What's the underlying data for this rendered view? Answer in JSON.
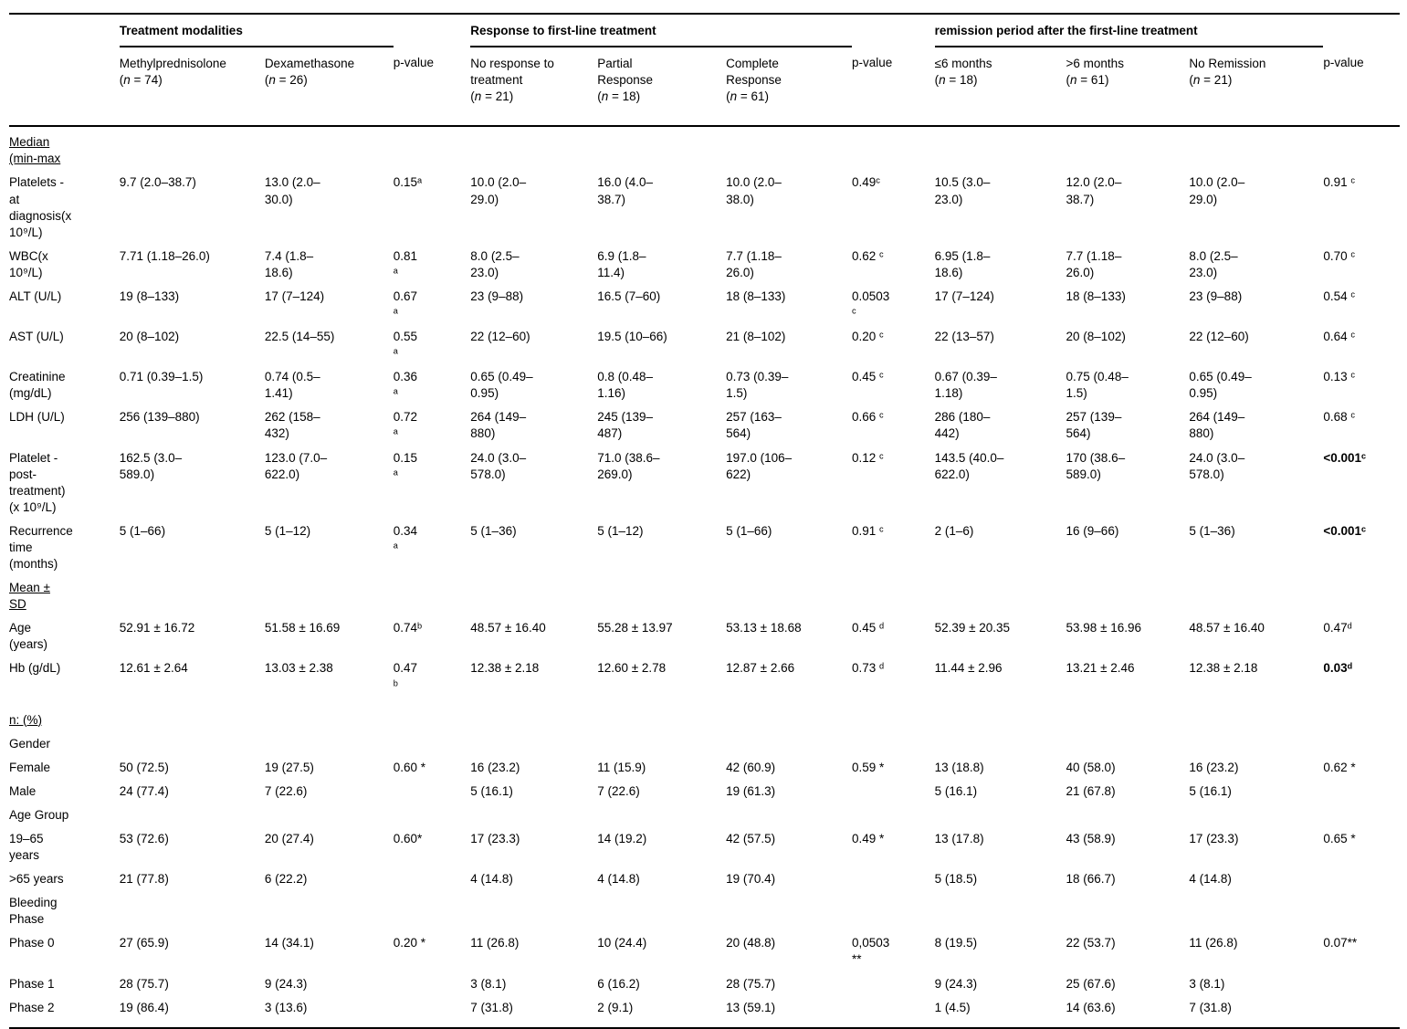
{
  "table": {
    "groups": [
      {
        "label": "",
        "span": 1,
        "rule": false
      },
      {
        "label": "Treatment modalities",
        "span": 2,
        "rule": true
      },
      {
        "label": "",
        "span": 1,
        "rule": false
      },
      {
        "label": "Response to first-line treatment",
        "span": 3,
        "rule": true
      },
      {
        "label": "",
        "span": 1,
        "rule": false
      },
      {
        "label": "remission period after the first-line treatment",
        "span": 3,
        "rule": true
      },
      {
        "label": "",
        "span": 1,
        "rule": false
      }
    ],
    "columns": [
      {
        "label": "Methylprednisolone",
        "n": "74"
      },
      {
        "label": "Dexamethasone",
        "n": "26"
      },
      {
        "label": "p-value"
      },
      {
        "label": "No response to\ntreatment",
        "n": "21"
      },
      {
        "label": "Partial\nResponse",
        "n": "18"
      },
      {
        "label": "Complete\nResponse",
        "n": "61"
      },
      {
        "label": "p-value"
      },
      {
        "label": "≤6 months",
        "n": "18"
      },
      {
        "label": ">6 months",
        "n": "61"
      },
      {
        "label": "No Remission",
        "n": "21"
      },
      {
        "label": "p-value"
      }
    ],
    "rows": [
      {
        "type": "section",
        "label": "Median\n(min-max",
        "cells": [
          "",
          "",
          "",
          "",
          "",
          "",
          "",
          "",
          "",
          "",
          ""
        ]
      },
      {
        "type": "data",
        "label": "Platelets -\nat\ndiagnosis(x\n10⁹/L)",
        "cells": [
          "9.7 (2.0–38.7)",
          "13.0 (2.0–\n30.0)",
          "0.15ᵃ",
          "10.0 (2.0–\n29.0)",
          "16.0 (4.0–\n38.7)",
          "10.0 (2.0–\n38.0)",
          "0.49ᶜ",
          "10.5 (3.0–\n23.0)",
          "12.0 (2.0–\n38.7)",
          "10.0 (2.0–\n29.0)",
          "0.91 ᶜ"
        ]
      },
      {
        "type": "data",
        "label": "WBC(x\n10⁹/L)",
        "cells": [
          "7.71 (1.18–26.0)",
          "7.4 (1.8–\n18.6)",
          "0.81\nᵃ",
          "8.0 (2.5–\n23.0)",
          "6.9 (1.8–\n11.4)",
          "7.7 (1.18–\n26.0)",
          "0.62 ᶜ",
          "6.95 (1.8–\n18.6)",
          "7.7 (1.18–\n26.0)",
          "8.0 (2.5–\n23.0)",
          "0.70 ᶜ"
        ]
      },
      {
        "type": "data",
        "label": "ALT (U/L)",
        "cells": [
          "19 (8–133)",
          "17 (7–124)",
          "0.67\nᵃ",
          "23 (9–88)",
          "16.5 (7–60)",
          "18 (8–133)",
          "0.0503\nᶜ",
          "17 (7–124)",
          "18 (8–133)",
          "23 (9–88)",
          "0.54 ᶜ"
        ]
      },
      {
        "type": "data",
        "label": "AST (U/L)",
        "cells": [
          "20 (8–102)",
          "22.5 (14–55)",
          "0.55\nᵃ",
          "22 (12–60)",
          "19.5 (10–66)",
          "21 (8–102)",
          "0.20 ᶜ",
          "22 (13–57)",
          "20 (8–102)",
          "22 (12–60)",
          "0.64 ᶜ"
        ]
      },
      {
        "type": "data",
        "label": "Creatinine\n(mg/dL)",
        "cells": [
          "0.71 (0.39–1.5)",
          "0.74 (0.5–\n1.41)",
          "0.36\nᵃ",
          "0.65 (0.49–\n0.95)",
          "0.8 (0.48–\n1.16)",
          "0.73 (0.39–\n1.5)",
          "0.45 ᶜ",
          "0.67 (0.39–\n1.18)",
          "0.75 (0.48–\n1.5)",
          "0.65 (0.49–\n0.95)",
          "0.13 ᶜ"
        ]
      },
      {
        "type": "data",
        "label": "LDH (U/L)",
        "cells": [
          "256 (139–880)",
          "262 (158–\n432)",
          "0.72\nᵃ",
          "264 (149–\n880)",
          "245 (139–\n487)",
          "257 (163–\n564)",
          "0.66 ᶜ",
          "286 (180–\n442)",
          "257 (139–\n564)",
          "264 (149–\n880)",
          "0.68 ᶜ"
        ]
      },
      {
        "type": "data",
        "label": "Platelet -\npost-\ntreatment)\n(x 10⁹/L)",
        "cells": [
          "162.5 (3.0–\n589.0)",
          "123.0 (7.0–\n622.0)",
          "0.15\nᵃ",
          "24.0 (3.0–\n578.0)",
          "71.0 (38.6–\n269.0)",
          "197.0 (106–\n622)",
          "0.12 ᶜ",
          "143.5 (40.0–\n622.0)",
          "170 (38.6–\n589.0)",
          "24.0 (3.0–\n578.0)",
          "<0.001ᶜ"
        ],
        "bold": [
          10
        ]
      },
      {
        "type": "data",
        "label": "Recurrence\ntime\n(months)",
        "cells": [
          "5 (1–66)",
          "5 (1–12)",
          "0.34\nᵃ",
          "5 (1–36)",
          "5 (1–12)",
          "5 (1–66)",
          "0.91 ᶜ",
          "2 (1–6)",
          "16 (9–66)",
          "5 (1–36)",
          "<0.001ᶜ"
        ],
        "bold": [
          10
        ]
      },
      {
        "type": "section",
        "label": "Mean ±\nSD",
        "cells": [
          "",
          "",
          "",
          "",
          "",
          "",
          "",
          "",
          "",
          "",
          ""
        ]
      },
      {
        "type": "data",
        "label": "Age\n(years)",
        "cells": [
          "52.91 ± 16.72",
          "51.58 ± 16.69",
          "0.74ᵇ",
          "48.57 ± 16.40",
          "55.28 ± 13.97",
          "53.13 ± 18.68",
          "0.45 ᵈ",
          "52.39 ± 20.35",
          "53.98 ± 16.96",
          "48.57 ± 16.40",
          "0.47ᵈ"
        ]
      },
      {
        "type": "data",
        "label": "Hb (g/dL)",
        "cells": [
          "12.61 ± 2.64",
          "13.03 ± 2.38",
          "0.47\nᵇ",
          "12.38 ± 2.18",
          "12.60 ± 2.78",
          "12.87 ± 2.66",
          "0.73 ᵈ",
          "11.44 ± 2.96",
          "13.21 ± 2.46",
          "12.38 ± 2.18",
          "0.03ᵈ"
        ],
        "bold": [
          10
        ]
      },
      {
        "type": "section",
        "label": "n: (%)",
        "gap": true,
        "cells": [
          "",
          "",
          "",
          "",
          "",
          "",
          "",
          "",
          "",
          "",
          ""
        ]
      },
      {
        "type": "subheader",
        "label": "Gender",
        "cells": [
          "",
          "",
          "",
          "",
          "",
          "",
          "",
          "",
          "",
          "",
          ""
        ]
      },
      {
        "type": "data",
        "label": "Female",
        "cells": [
          "50 (72.5)",
          "19 (27.5)",
          "0.60 *",
          "16 (23.2)",
          "11 (15.9)",
          "42 (60.9)",
          "0.59 *",
          "13 (18.8)",
          "40 (58.0)",
          "16 (23.2)",
          "0.62 *"
        ]
      },
      {
        "type": "data",
        "label": "Male",
        "cells": [
          "24 (77.4)",
          "7 (22.6)",
          "",
          "5 (16.1)",
          "7 (22.6)",
          "19 (61.3)",
          "",
          "5 (16.1)",
          "21 (67.8)",
          "5 (16.1)",
          ""
        ]
      },
      {
        "type": "subheader",
        "label": "Age Group",
        "cells": [
          "",
          "",
          "",
          "",
          "",
          "",
          "",
          "",
          "",
          "",
          ""
        ]
      },
      {
        "type": "data",
        "label": "19–65\nyears",
        "cells": [
          "53 (72.6)",
          "20 (27.4)",
          "0.60*",
          "17 (23.3)",
          "14 (19.2)",
          "42 (57.5)",
          "0.49 *",
          "13 (17.8)",
          "43 (58.9)",
          "17 (23.3)",
          "0.65 *"
        ]
      },
      {
        "type": "data",
        "label": ">65 years",
        "cells": [
          "21 (77.8)",
          "6 (22.2)",
          "",
          "4 (14.8)",
          "4 (14.8)",
          "19 (70.4)",
          "",
          "5 (18.5)",
          "18 (66.7)",
          "4 (14.8)",
          ""
        ]
      },
      {
        "type": "subheader",
        "label": "Bleeding\nPhase",
        "cells": [
          "",
          "",
          "",
          "",
          "",
          "",
          "",
          "",
          "",
          "",
          ""
        ]
      },
      {
        "type": "data",
        "label": "Phase 0",
        "cells": [
          "27 (65.9)",
          "14 (34.1)",
          "0.20 *",
          "11 (26.8)",
          "10 (24.4)",
          "20 (48.8)",
          "0,0503\n**",
          "8 (19.5)",
          "22 (53.7)",
          "11 (26.8)",
          "0.07**"
        ]
      },
      {
        "type": "data",
        "label": "Phase 1",
        "cells": [
          "28 (75.7)",
          "9 (24.3)",
          "",
          "3 (8.1)",
          "6 (16.2)",
          "28 (75.7)",
          "",
          "9 (24.3)",
          "25 (67.6)",
          "3 (8.1)",
          ""
        ]
      },
      {
        "type": "data",
        "label": "Phase 2",
        "cells": [
          "19 (86.4)",
          "3 (13.6)",
          "",
          "7 (31.8)",
          "2 (9.1)",
          "13 (59.1)",
          "",
          "1 (4.5)",
          "14 (63.6)",
          "7 (31.8)",
          ""
        ]
      }
    ]
  }
}
